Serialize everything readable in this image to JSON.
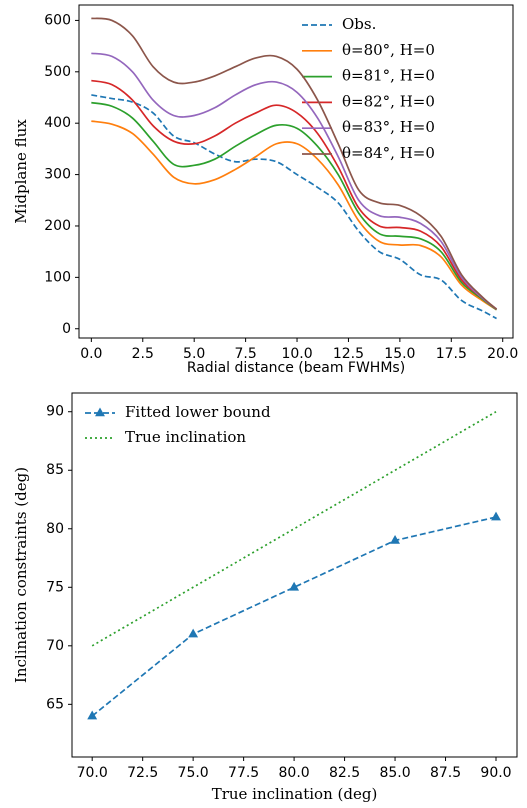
{
  "chart_data": [
    {
      "type": "line",
      "xlabel": "Radial distance (beam FWHMs)",
      "ylabel": "Midplane flux",
      "x": [
        0,
        1,
        2,
        3,
        4,
        5,
        6,
        7,
        8,
        9,
        10,
        11,
        12,
        13,
        14,
        15,
        16,
        17,
        18,
        19,
        19.7
      ],
      "xlim": [
        -0.6,
        20.5
      ],
      "ylim": [
        -18,
        630
      ],
      "xticks": [
        {
          "value": 0,
          "label": "0.0"
        },
        {
          "value": 2.5,
          "label": "2.5"
        },
        {
          "value": 5,
          "label": "5.0"
        },
        {
          "value": 7.5,
          "label": "7.5"
        },
        {
          "value": 10,
          "label": "10.0"
        },
        {
          "value": 12.5,
          "label": "12.5"
        },
        {
          "value": 15,
          "label": "15.0"
        },
        {
          "value": 17.5,
          "label": "17.5"
        },
        {
          "value": 20,
          "label": "20.0"
        }
      ],
      "yticks": [
        0,
        100,
        200,
        300,
        400,
        500,
        600
      ],
      "legend": "upper right",
      "grid": false,
      "series": [
        {
          "name": "Obs.",
          "color": "#1f77b4",
          "linestyle": "dashed",
          "values": [
            455,
            448,
            441,
            420,
            375,
            362,
            340,
            325,
            330,
            325,
            300,
            275,
            245,
            190,
            150,
            135,
            105,
            95,
            55,
            35,
            20
          ]
        },
        {
          "name": "θ=80°, H=0",
          "color": "#ff7f0e",
          "linestyle": "solid",
          "values": [
            404,
            398,
            380,
            340,
            295,
            282,
            290,
            310,
            335,
            360,
            360,
            330,
            280,
            210,
            170,
            163,
            162,
            140,
            85,
            55,
            37
          ]
        },
        {
          "name": "θ=81°, H=0",
          "color": "#2ca02c",
          "linestyle": "solid",
          "values": [
            440,
            433,
            410,
            365,
            320,
            318,
            330,
            355,
            378,
            396,
            390,
            355,
            300,
            225,
            185,
            180,
            175,
            150,
            90,
            58,
            37
          ]
        },
        {
          "name": "θ=82°, H=0",
          "color": "#d62728",
          "linestyle": "solid",
          "values": [
            483,
            475,
            445,
            395,
            365,
            360,
            375,
            400,
            420,
            435,
            420,
            380,
            315,
            235,
            200,
            197,
            190,
            160,
            95,
            60,
            38
          ]
        },
        {
          "name": "θ=83°, H=0",
          "color": "#9467bd",
          "linestyle": "solid",
          "values": [
            536,
            530,
            500,
            445,
            415,
            415,
            430,
            455,
            475,
            480,
            460,
            410,
            335,
            250,
            220,
            217,
            205,
            170,
            100,
            60,
            38
          ]
        },
        {
          "name": "θ=84°, H=0",
          "color": "#8c564b",
          "linestyle": "solid",
          "values": [
            604,
            600,
            570,
            510,
            480,
            480,
            492,
            510,
            527,
            530,
            505,
            445,
            360,
            270,
            245,
            240,
            220,
            180,
            105,
            62,
            38
          ]
        }
      ]
    },
    {
      "type": "line",
      "xlabel": "True inclination (deg)",
      "ylabel": "Inclination constraints (deg)",
      "x": [
        70,
        75,
        80,
        85,
        90
      ],
      "xlim": [
        69,
        91.04
      ],
      "ylim": [
        60.5,
        91.6
      ],
      "xticks": [
        {
          "value": 70,
          "label": "70.0"
        },
        {
          "value": 72.5,
          "label": "72.5"
        },
        {
          "value": 75,
          "label": "75.0"
        },
        {
          "value": 77.5,
          "label": "77.5"
        },
        {
          "value": 80,
          "label": "80.0"
        },
        {
          "value": 82.5,
          "label": "82.5"
        },
        {
          "value": 85,
          "label": "85.0"
        },
        {
          "value": 87.5,
          "label": "87.5"
        },
        {
          "value": 90,
          "label": "90.0"
        }
      ],
      "yticks": [
        65,
        70,
        75,
        80,
        85,
        90
      ],
      "legend": "upper left",
      "grid": false,
      "series": [
        {
          "name": "Fitted lower bound",
          "color": "#1f77b4",
          "linestyle": "dashed",
          "marker": "^",
          "values": [
            64,
            71,
            75,
            79,
            81
          ]
        },
        {
          "name": "True inclination",
          "color": "#2ca02c",
          "linestyle": "dotted",
          "values": [
            70,
            75,
            80,
            85,
            90
          ]
        }
      ]
    }
  ]
}
